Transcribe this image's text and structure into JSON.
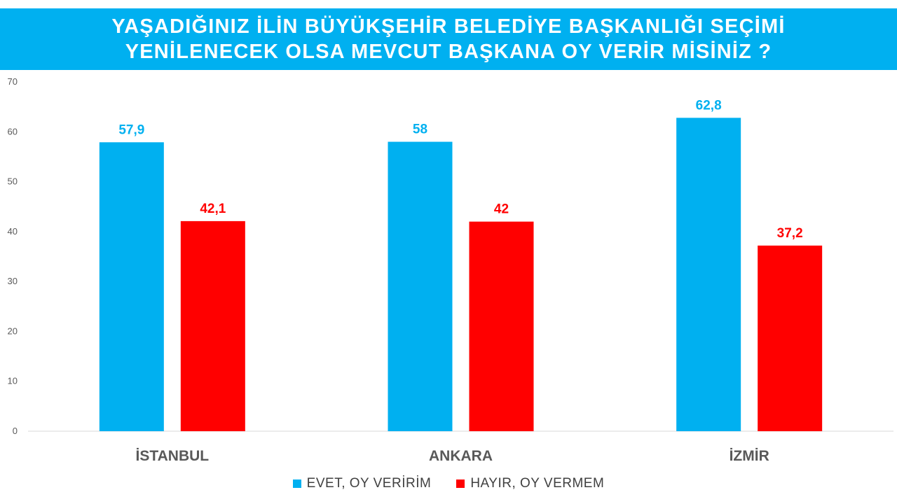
{
  "header": {
    "title_line1": "YAŞADIĞINIZ İLİN BÜYÜKŞEHİR BELEDİYE BAŞKANLIĞI SEÇİMİ",
    "title_line2": "YENİLENECEK OLSA MEVCUT BAŞKANA OY VERİR MİSİNİZ ?"
  },
  "colors": {
    "banner": "#00b0f0",
    "evet": "#00b0f0",
    "hayir": "#ff0000"
  },
  "chart_data": {
    "type": "bar",
    "title": "YAŞADIĞINIZ İLİN BÜYÜKŞEHİR BELEDİYE BAŞKANLIĞI SEÇİMİ YENİLENECEK OLSA MEVCUT BAŞKANA OY VERİR MİSİNİZ ?",
    "categories": [
      "İSTANBUL",
      "ANKARA",
      "İZMİR"
    ],
    "series": [
      {
        "name": "EVET, OY VERİRİM",
        "color": "#00b0f0",
        "values": [
          57.9,
          58,
          62.8
        ],
        "labels": [
          "57,9",
          "58",
          "62,8"
        ]
      },
      {
        "name": "HAYIR, OY VERMEM",
        "color": "#ff0000",
        "values": [
          42.1,
          42,
          37.2
        ],
        "labels": [
          "42,1",
          "42",
          "37,2"
        ]
      }
    ],
    "ylim": [
      0,
      70
    ],
    "yticks": [
      "0",
      "10",
      "20",
      "30",
      "40",
      "50",
      "60",
      "70"
    ],
    "grid": false,
    "legend": "bottom"
  }
}
